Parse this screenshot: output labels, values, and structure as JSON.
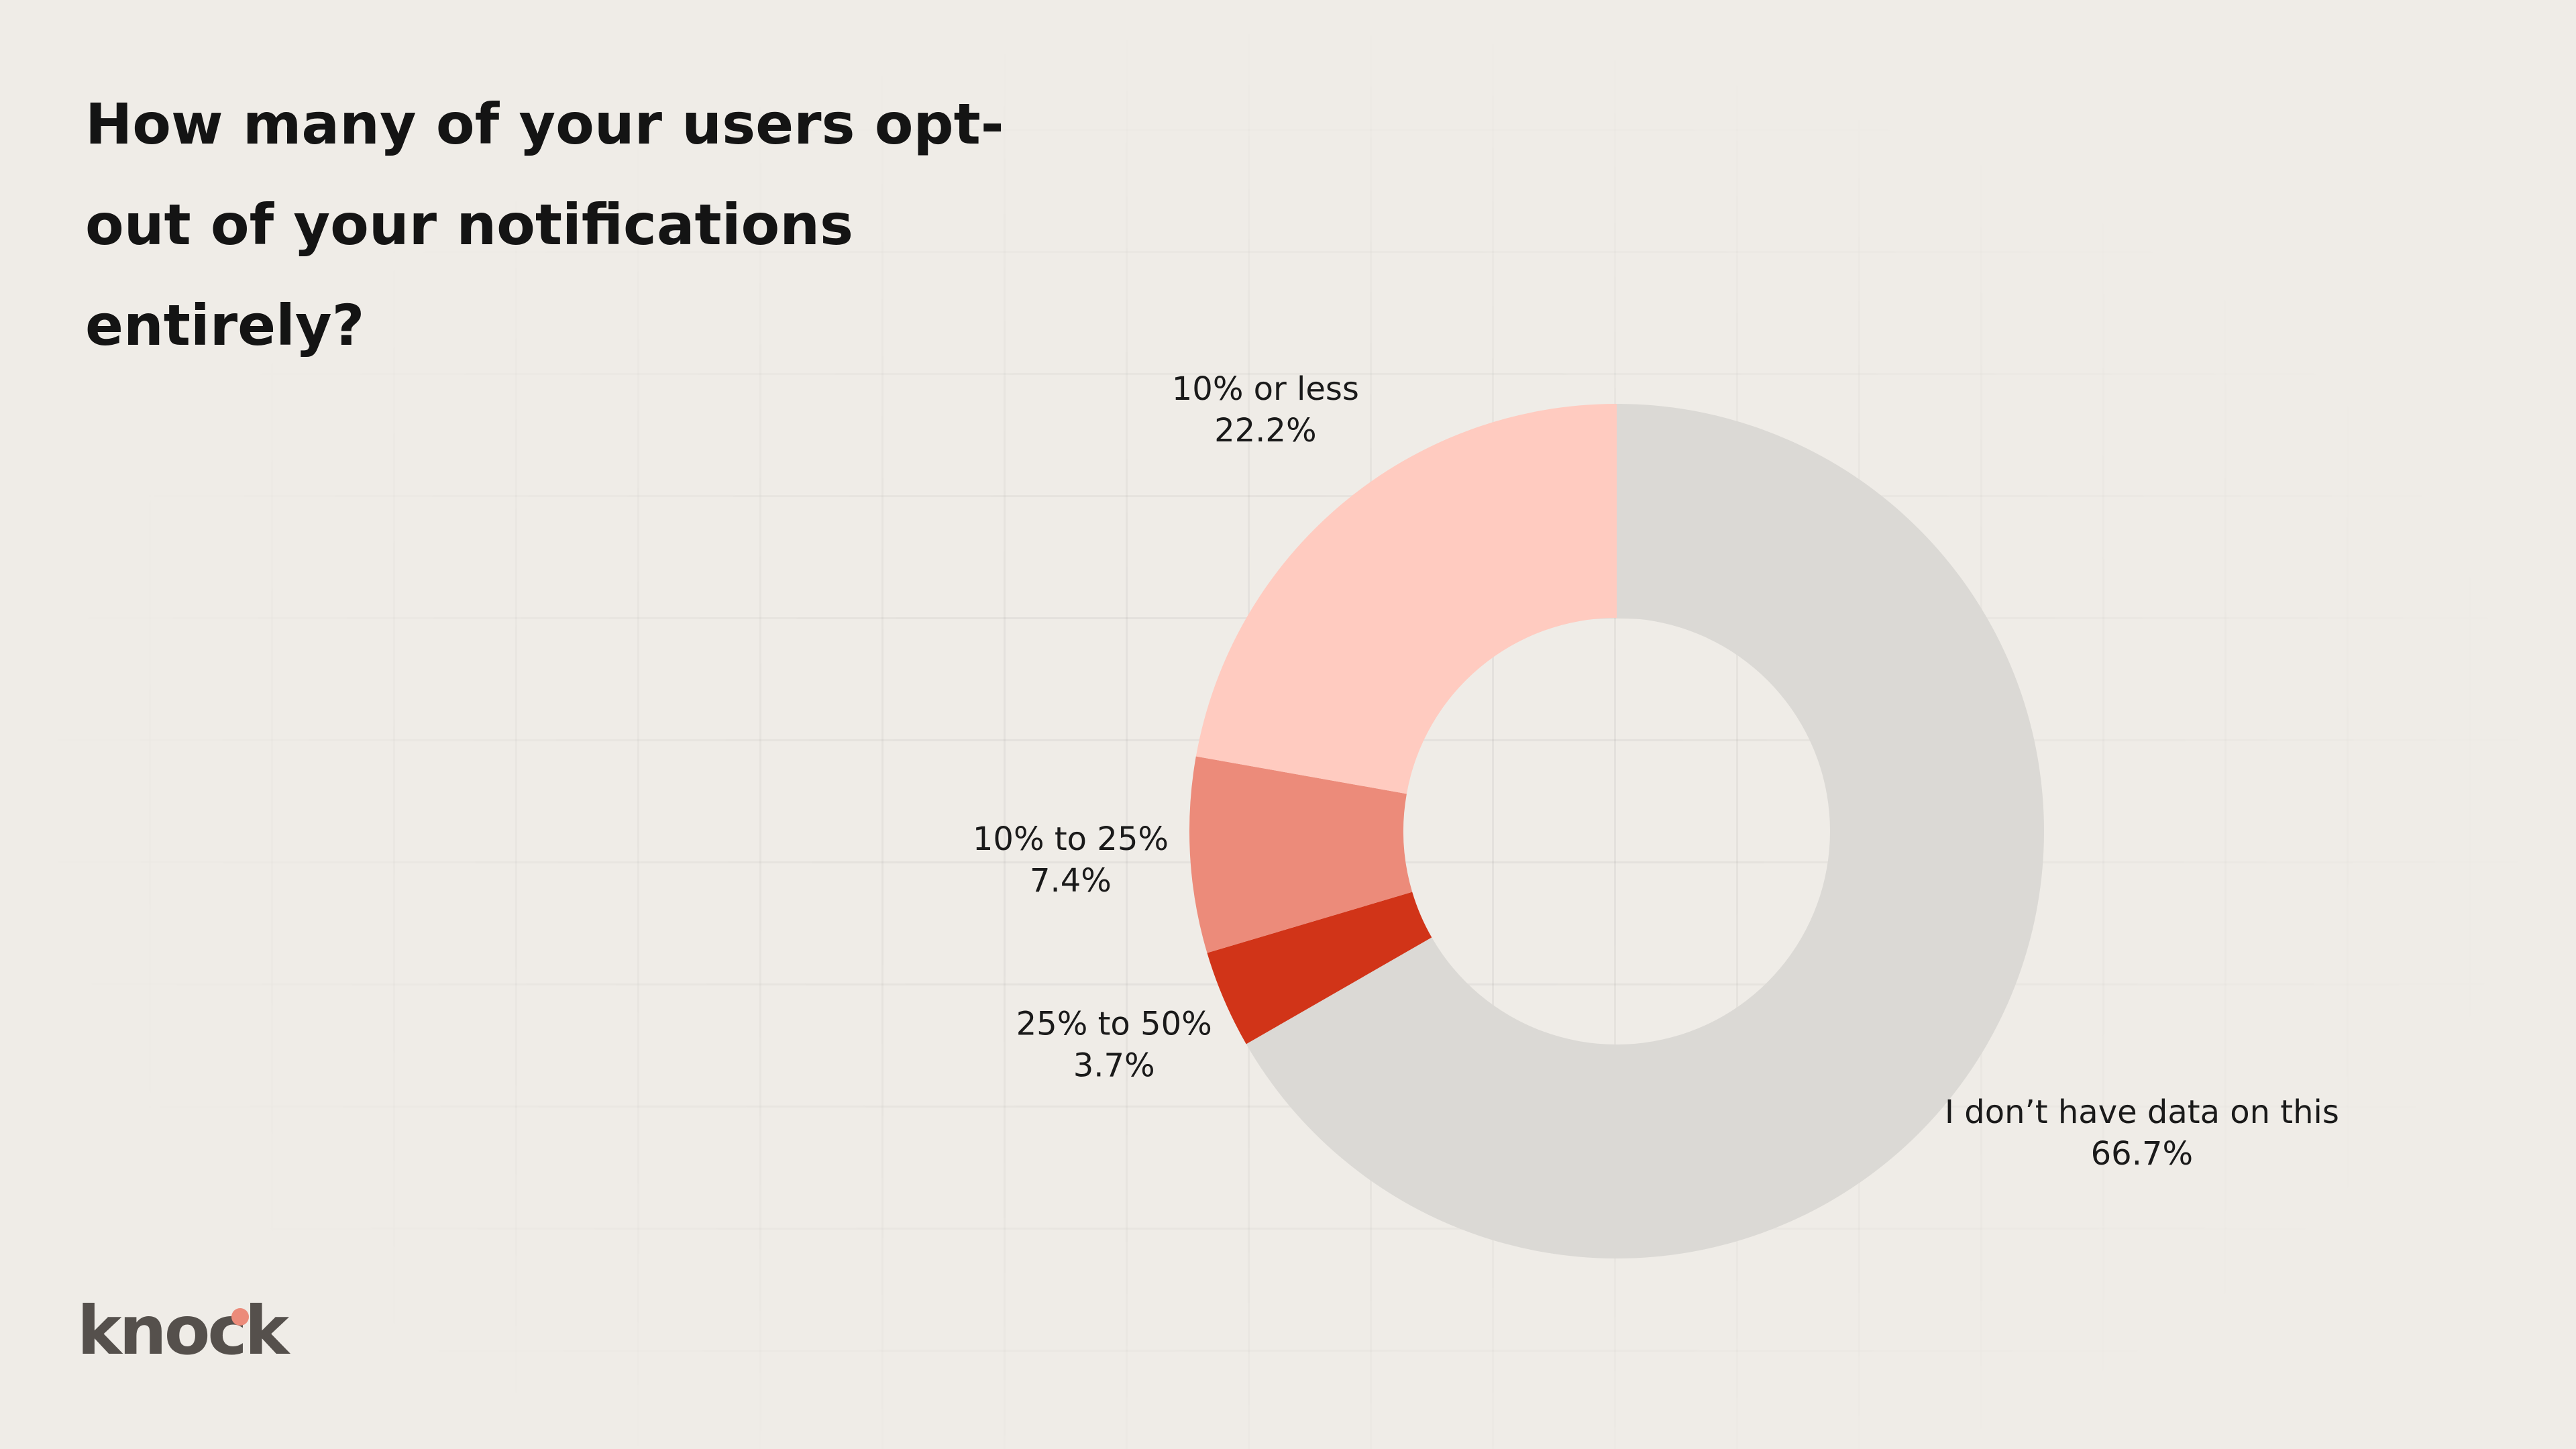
{
  "chart_data": {
    "type": "donut",
    "title": "How many of your users opt-out of your notifications entirely?",
    "categories": [
      "I don’t have data on this",
      "25% to 50%",
      "10% to 25%",
      "10% or less"
    ],
    "values": [
      66.7,
      3.7,
      7.4,
      22.2
    ],
    "value_labels": [
      "66.7%",
      "3.7%",
      "7.4%",
      "22.2%"
    ],
    "colors": [
      "#dbd9d5",
      "#d13418",
      "#ec8b7a",
      "#ffcbc0"
    ]
  },
  "logo": "knock"
}
